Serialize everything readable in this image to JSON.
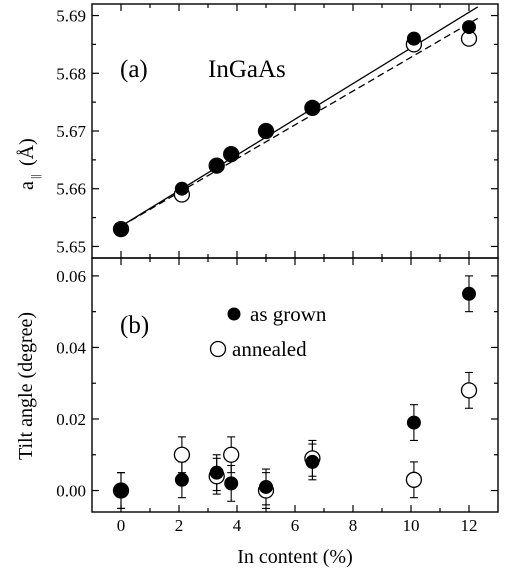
{
  "chart_data": [
    {
      "panel": "(a)",
      "type": "scatter",
      "annotation": "InGaAs",
      "ylabel_main": "a",
      "ylabel_sub": "||",
      "ylabel_unit": "(Å)",
      "xlabel": "",
      "xlim": [
        -1,
        13
      ],
      "ylim": [
        5.648,
        5.692
      ],
      "xticks": [
        0,
        2,
        4,
        6,
        8,
        10,
        12
      ],
      "yticks": [
        5.65,
        5.66,
        5.67,
        5.68,
        5.69
      ],
      "ytick_labels": [
        "5.65",
        "5.66",
        "5.67",
        "5.68",
        "5.69"
      ],
      "series": [
        {
          "marker": "filled",
          "x": [
            0,
            2.1,
            3.3,
            3.8,
            5.0,
            6.6,
            10.1,
            12.0
          ],
          "y": [
            5.653,
            5.66,
            5.664,
            5.666,
            5.67,
            5.674,
            5.686,
            5.688
          ]
        },
        {
          "marker": "open",
          "x": [
            0,
            2.1,
            3.3,
            3.8,
            5.0,
            6.6,
            10.1,
            12.0
          ],
          "y": [
            5.653,
            5.659,
            5.664,
            5.666,
            5.67,
            5.674,
            5.685,
            5.686
          ]
        }
      ],
      "fits": [
        {
          "style": "solid",
          "x": [
            0,
            12.3
          ],
          "y": [
            5.6535,
            5.6915
          ]
        },
        {
          "style": "dashed",
          "x": [
            0,
            12.3
          ],
          "y": [
            5.6535,
            5.6895
          ]
        }
      ]
    },
    {
      "panel": "(b)",
      "type": "scatter",
      "ylabel": "Tilt angle (degree)",
      "xlabel": "In content (%)",
      "xlim": [
        -1,
        13
      ],
      "ylim": [
        -0.006,
        0.065
      ],
      "xticks": [
        0,
        2,
        4,
        6,
        8,
        10,
        12
      ],
      "xtick_labels": [
        "0",
        "2",
        "4",
        "6",
        "8",
        "10",
        "12"
      ],
      "yticks": [
        0.0,
        0.02,
        0.04,
        0.06
      ],
      "ytick_labels": [
        "0.00",
        "0.02",
        "0.04",
        "0.06"
      ],
      "legend_position": "top-center",
      "series": [
        {
          "name": "as grown",
          "marker": "filled",
          "x": [
            0,
            2.1,
            3.3,
            3.8,
            5.0,
            6.6,
            10.1,
            12.0
          ],
          "y": [
            0.0,
            0.003,
            0.005,
            0.002,
            0.001,
            0.008,
            0.019,
            0.055
          ],
          "err": [
            0.005,
            0.005,
            0.005,
            0.005,
            0.005,
            0.005,
            0.005,
            0.005
          ]
        },
        {
          "name": "annealed",
          "marker": "open",
          "x": [
            0,
            2.1,
            3.3,
            3.8,
            5.0,
            6.6,
            10.1,
            12.0
          ],
          "y": [
            0.0,
            0.01,
            0.004,
            0.01,
            0.0,
            0.009,
            0.003,
            0.028
          ],
          "err": [
            0.005,
            0.005,
            0.005,
            0.005,
            0.005,
            0.005,
            0.005,
            0.005
          ]
        }
      ]
    }
  ]
}
